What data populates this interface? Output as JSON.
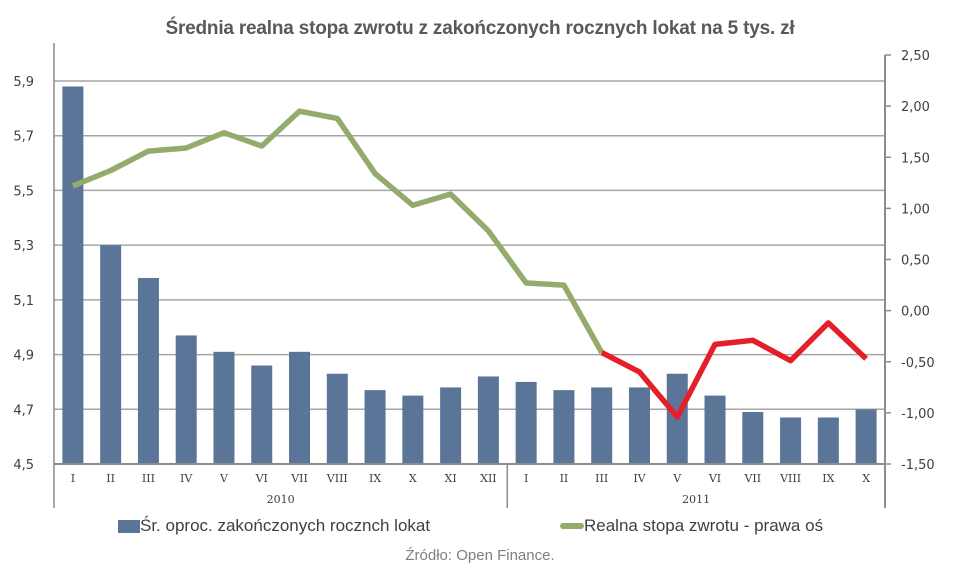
{
  "title": "Średnia realna stopa zwrotu z zakończonych rocznych lokat na 5 tys. zł",
  "source": "Źródło: Open Finance.",
  "legend": {
    "bars": "Śr. oproc. zakończonych rocznch lokat",
    "line": "Realna stopa zwrotu - prawa oś"
  },
  "colors": {
    "bar": "#5b7599",
    "line_positive": "#93ab6b",
    "line_negative": "#e3202a",
    "grid": "#a6a6a6",
    "axis": "#8c8c8c"
  },
  "chart_data": {
    "type": "bar+line",
    "title": "Średnia realna stopa zwrotu z zakończonych rocznych lokat na 5 tys. zł",
    "categories": [
      "I",
      "II",
      "III",
      "IV",
      "V",
      "VI",
      "VII",
      "VIII",
      "IX",
      "X",
      "XI",
      "XII",
      "I",
      "II",
      "III",
      "IV",
      "V",
      "VI",
      "VII",
      "VIII",
      "IX",
      "X"
    ],
    "groups": [
      {
        "label": "2010",
        "start": 0,
        "end": 11
      },
      {
        "label": "2011",
        "start": 12,
        "end": 21
      }
    ],
    "left_axis": {
      "ylim": [
        4.5,
        5.9
      ],
      "ticks": [
        "4,5",
        "4,7",
        "4,9",
        "5,1",
        "5,3",
        "5,5",
        "5,7",
        "5,9"
      ],
      "tick_values": [
        4.5,
        4.7,
        4.9,
        5.1,
        5.3,
        5.5,
        5.7,
        5.9
      ]
    },
    "right_axis": {
      "ylim": [
        -1.5,
        2.5
      ],
      "ticks": [
        "-1,50",
        "-1,00",
        "-0,50",
        "0,00",
        "0,50",
        "1,00",
        "1,50",
        "2,00",
        "2,50"
      ],
      "tick_values": [
        -1.5,
        -1.0,
        -0.5,
        0.0,
        0.5,
        1.0,
        1.5,
        2.0,
        2.5
      ]
    },
    "series": [
      {
        "name": "Śr. oproc. zakończonych rocznch lokat",
        "type": "bar",
        "axis": "left",
        "values": [
          5.88,
          5.3,
          5.18,
          4.97,
          4.91,
          4.86,
          4.91,
          4.83,
          4.77,
          4.75,
          4.78,
          4.82,
          4.8,
          4.77,
          4.78,
          4.78,
          4.83,
          4.75,
          4.69,
          4.67,
          4.67,
          4.7
        ]
      },
      {
        "name": "Realna stopa zwrotu - prawa oś",
        "type": "line",
        "axis": "right",
        "values": [
          1.22,
          1.37,
          1.56,
          1.59,
          1.74,
          1.61,
          1.95,
          1.88,
          1.34,
          1.03,
          1.14,
          0.78,
          0.27,
          0.25,
          -0.41,
          -0.6,
          -1.04,
          -0.33,
          -0.29,
          -0.49,
          -0.12,
          -0.47
        ],
        "note": "segment from 2011-III onward drawn in red (negative real return)"
      }
    ],
    "grid": true,
    "legend_position": "bottom"
  }
}
